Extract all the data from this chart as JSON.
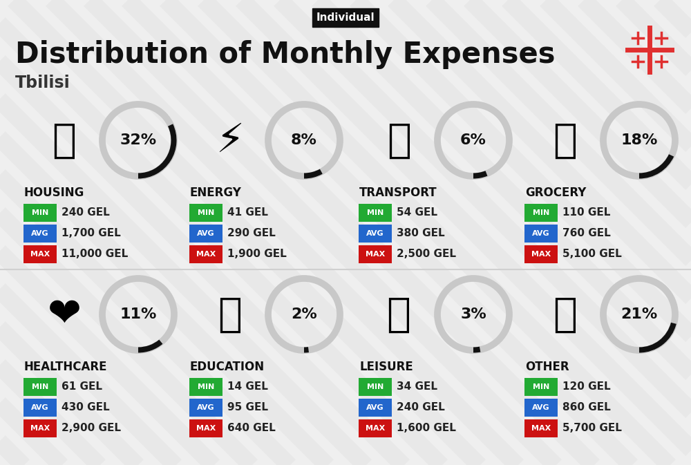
{
  "title": "Distribution of Monthly Expenses",
  "subtitle": "Tbilisi",
  "tag": "Individual",
  "bg_color": "#efefef",
  "categories": [
    {
      "name": "HOUSING",
      "pct": 32,
      "min_val": "240 GEL",
      "avg_val": "1,700 GEL",
      "max_val": "11,000 GEL",
      "icon": "🏢",
      "row": 0,
      "col": 0
    },
    {
      "name": "ENERGY",
      "pct": 8,
      "min_val": "41 GEL",
      "avg_val": "290 GEL",
      "max_val": "1,900 GEL",
      "icon": "⚡",
      "row": 0,
      "col": 1
    },
    {
      "name": "TRANSPORT",
      "pct": 6,
      "min_val": "54 GEL",
      "avg_val": "380 GEL",
      "max_val": "2,500 GEL",
      "icon": "🚌",
      "row": 0,
      "col": 2
    },
    {
      "name": "GROCERY",
      "pct": 18,
      "min_val": "110 GEL",
      "avg_val": "760 GEL",
      "max_val": "5,100 GEL",
      "icon": "🛒",
      "row": 0,
      "col": 3
    },
    {
      "name": "HEALTHCARE",
      "pct": 11,
      "min_val": "61 GEL",
      "avg_val": "430 GEL",
      "max_val": "2,900 GEL",
      "icon": "❤️",
      "row": 1,
      "col": 0
    },
    {
      "name": "EDUCATION",
      "pct": 2,
      "min_val": "14 GEL",
      "avg_val": "95 GEL",
      "max_val": "640 GEL",
      "icon": "🎓",
      "row": 1,
      "col": 1
    },
    {
      "name": "LEISURE",
      "pct": 3,
      "min_val": "34 GEL",
      "avg_val": "240 GEL",
      "max_val": "1,600 GEL",
      "icon": "🛍️",
      "row": 1,
      "col": 2
    },
    {
      "name": "OTHER",
      "pct": 21,
      "min_val": "120 GEL",
      "avg_val": "860 GEL",
      "max_val": "5,700 GEL",
      "icon": "👜",
      "row": 1,
      "col": 3
    }
  ],
  "color_min": "#22aa33",
  "color_avg": "#2266cc",
  "color_max": "#cc1111",
  "circle_bg_color": "#c8c8c8",
  "circle_arc_color": "#111111",
  "flag_color": "#e03030",
  "stripe_color": "#e8e8e8",
  "divider_color": "#d0d0d0"
}
